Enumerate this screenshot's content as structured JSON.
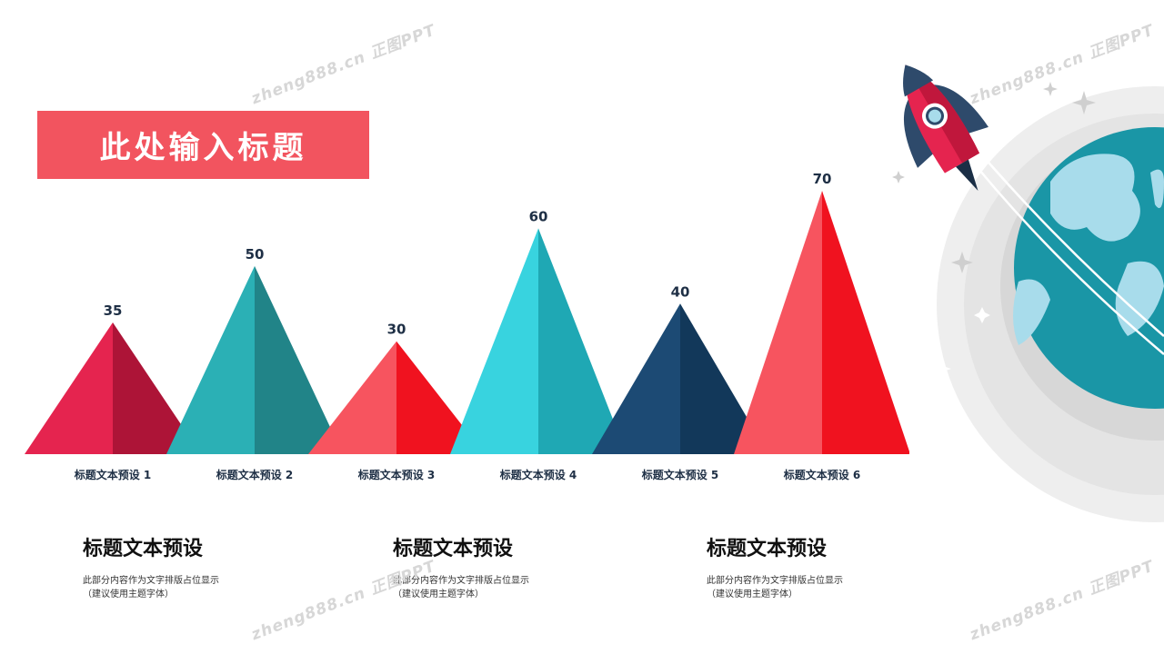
{
  "title": "此处输入标题",
  "colors": {
    "accent": "#f2545f",
    "text_dark": "#1e2f45",
    "pyramids": [
      {
        "left": "#e5244f",
        "right": "#ad1437"
      },
      {
        "left": "#2bb0b5",
        "right": "#218488"
      },
      {
        "left": "#f7545f",
        "right": "#f0121f"
      },
      {
        "left": "#38d3df",
        "right": "#1fa8b4"
      },
      {
        "left": "#1c4a74",
        "right": "#12385a"
      },
      {
        "left": "#f7545f",
        "right": "#f0121f"
      }
    ]
  },
  "chart_data": {
    "type": "bar",
    "categories": [
      "标题文本预设 1",
      "标题文本预设 2",
      "标题文本预设 3",
      "标题文本预设 4",
      "标题文本预设 5",
      "标题文本预设 6"
    ],
    "values": [
      35,
      50,
      30,
      60,
      40,
      70
    ],
    "data_labels": [
      "35",
      "50",
      "30",
      "60",
      "40",
      "70"
    ],
    "ylim": [
      0,
      70
    ],
    "grid": false,
    "legend": "none"
  },
  "blocks": [
    {
      "title": "标题文本预设",
      "line1": "此部分内容作为文字排版占位显示",
      "line2": "（建议使用主题字体）"
    },
    {
      "title": "标题文本预设",
      "line1": "此部分内容作为文字排版占位显示",
      "line2": "（建议使用主题字体）"
    },
    {
      "title": "标题文本预设",
      "line1": "此部分内容作为文字排版占位显示",
      "line2": "（建议使用主题字体）"
    }
  ],
  "watermark": "zheng888.cn 正图PPT",
  "decoration": {
    "rocket": "rocket-icon",
    "globe": "globe-icon",
    "stars": "sparkle-icon"
  }
}
